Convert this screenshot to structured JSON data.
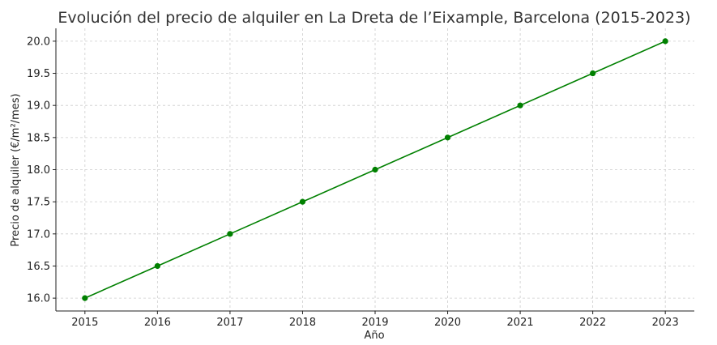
{
  "chart_data": {
    "type": "line",
    "title": "Evolución del precio de alquiler en La Dreta de l’Eixample, Barcelona (2015-2023)",
    "xlabel": "Año",
    "ylabel": "Precio de alquiler (€/m²/mes)",
    "x": [
      2015,
      2016,
      2017,
      2018,
      2019,
      2020,
      2021,
      2022,
      2023
    ],
    "xlim": [
      2014.6,
      2023.4
    ],
    "ylim": [
      15.8,
      20.2
    ],
    "y_ticks": [
      16.0,
      16.5,
      17.0,
      17.5,
      18.0,
      18.5,
      19.0,
      19.5,
      20.0
    ],
    "grid": true,
    "legend": "none",
    "series": [
      {
        "values": [
          16.0,
          16.5,
          17.0,
          17.5,
          18.0,
          18.5,
          19.0,
          19.5,
          20.0
        ],
        "color": "#008000",
        "marker": "circle"
      }
    ]
  }
}
